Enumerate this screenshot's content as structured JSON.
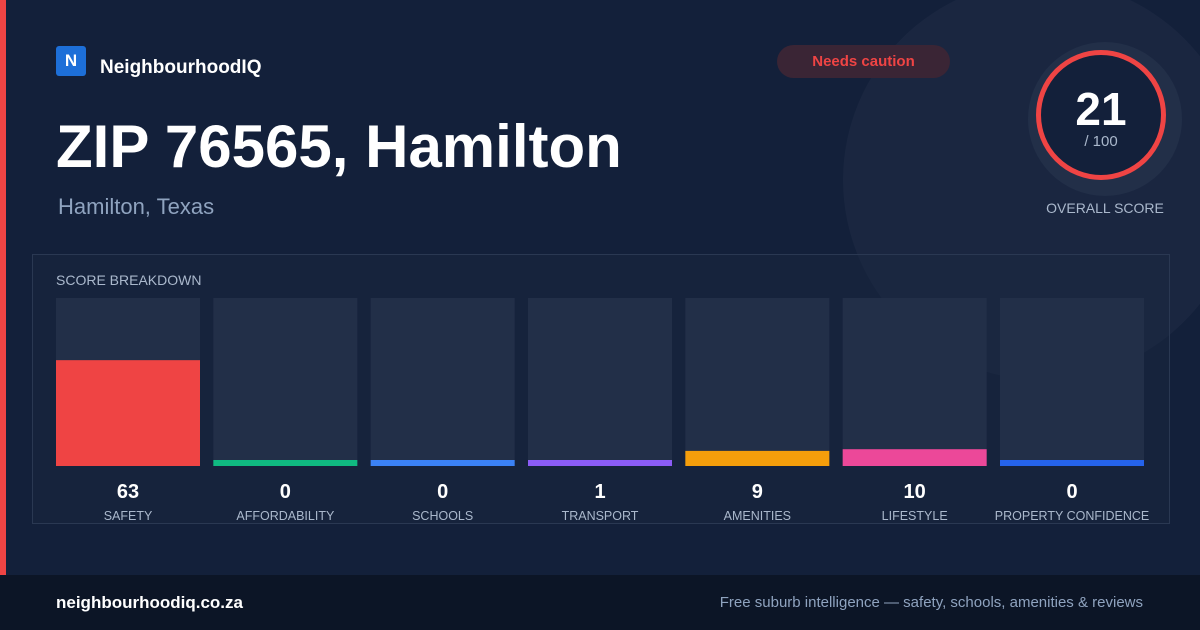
{
  "brand": {
    "logo": "N",
    "name": "NeighbourhoodIQ"
  },
  "header": {
    "title": "ZIP 76565, Hamilton",
    "subtitle": "Hamilton, Texas",
    "badge": "Needs caution"
  },
  "score": {
    "value": 21,
    "label": "/ 100",
    "caption": "OVERALL SCORE"
  },
  "chart_data": {
    "type": "bar",
    "title": "SCORE BREAKDOWN",
    "categories": [
      "SAFETY",
      "AFFORDABILITY",
      "SCHOOLS",
      "TRANSPORT",
      "AMENITIES",
      "LIFESTYLE",
      "PROPERTY CONFIDENCE"
    ],
    "values": [
      63,
      0,
      0,
      1,
      9,
      10,
      0
    ],
    "colors": [
      "#ef4444",
      "#10b981",
      "#3b82f6",
      "#8b5cf6",
      "#f59e0b",
      "#ec4899",
      "#2563eb"
    ],
    "ylim": [
      0,
      100
    ]
  },
  "footer": {
    "site": "neighbourhoodiq.co.za",
    "tagline": "Free suburb intelligence — safety, schools, amenities & reviews"
  }
}
